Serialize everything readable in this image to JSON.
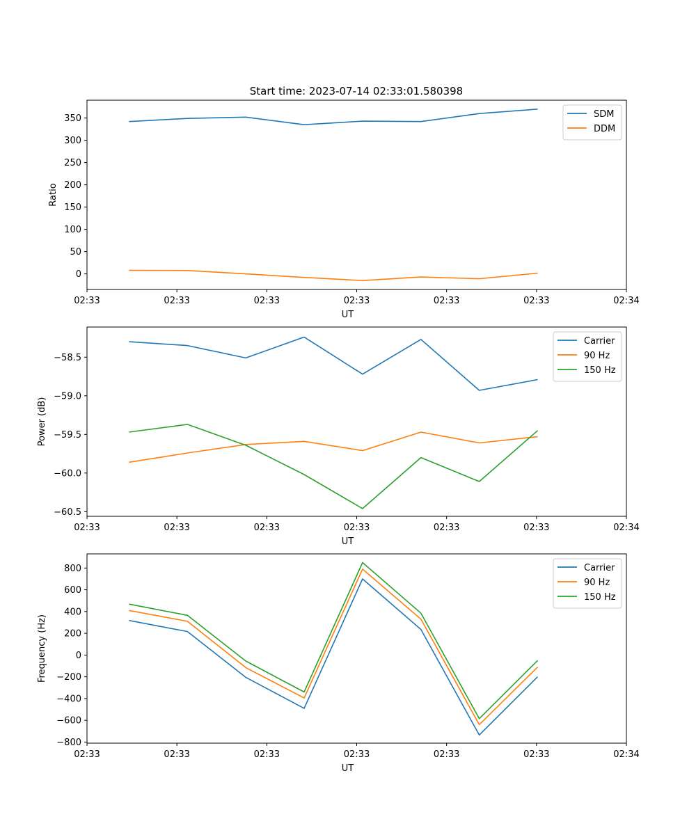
{
  "figure_title": "Start time: 2023-07-14 02:33:01.580398",
  "colors": {
    "blue": "#1f77b4",
    "orange": "#ff7f0e",
    "green": "#2ca02c"
  },
  "chart_data": [
    {
      "type": "line",
      "title": "Start time: 2023-07-14 02:33:01.580398",
      "xlabel": "UT",
      "ylabel": "Ratio",
      "x": [
        1,
        2,
        3,
        4,
        5,
        6,
        7,
        8
      ],
      "xlim": [
        0.28,
        9.52
      ],
      "x_ticks": [
        0.28,
        1.82,
        3.36,
        4.9,
        6.44,
        7.98,
        9.52
      ],
      "x_tick_labels": [
        "02:33",
        "02:33",
        "02:33",
        "02:33",
        "02:33",
        "02:33",
        "02:34"
      ],
      "ylim": [
        -35,
        390
      ],
      "y_ticks": [
        0,
        50,
        100,
        150,
        200,
        250,
        300,
        350
      ],
      "y_tick_labels": [
        "0",
        "50",
        "100",
        "150",
        "200",
        "250",
        "300",
        "350"
      ],
      "legend": "top-right",
      "series": [
        {
          "name": "SDM",
          "color": "#1f77b4",
          "values": [
            342,
            349,
            352,
            335,
            343,
            342,
            360,
            370
          ]
        },
        {
          "name": "DDM",
          "color": "#ff7f0e",
          "values": [
            8,
            7.5,
            0,
            -8,
            -15,
            -7,
            -11,
            1.5
          ]
        }
      ]
    },
    {
      "type": "line",
      "title": "",
      "xlabel": "UT",
      "ylabel": "Power (dB)",
      "x": [
        1,
        2,
        3,
        4,
        5,
        6,
        7,
        8
      ],
      "xlim": [
        0.28,
        9.52
      ],
      "x_ticks": [
        0.28,
        1.82,
        3.36,
        4.9,
        6.44,
        7.98,
        9.52
      ],
      "x_tick_labels": [
        "02:33",
        "02:33",
        "02:33",
        "02:33",
        "02:33",
        "02:33",
        "02:34"
      ],
      "ylim": [
        -60.56,
        -58.11
      ],
      "y_ticks": [
        -60.5,
        -60.0,
        -59.5,
        -59.0,
        -58.5
      ],
      "y_tick_labels": [
        "−60.5",
        "−60.0",
        "−59.5",
        "−59.0",
        "−58.5"
      ],
      "legend": "top-right",
      "series": [
        {
          "name": "Carrier",
          "color": "#1f77b4",
          "values": [
            -58.3,
            -58.35,
            -58.51,
            -58.24,
            -58.72,
            -58.27,
            -58.93,
            -58.79
          ]
        },
        {
          "name": "90 Hz",
          "color": "#ff7f0e",
          "values": [
            -59.86,
            -59.74,
            -59.63,
            -59.59,
            -59.71,
            -59.47,
            -59.61,
            -59.53
          ]
        },
        {
          "name": "150 Hz",
          "color": "#2ca02c",
          "values": [
            -59.47,
            -59.37,
            -59.64,
            -60.02,
            -60.46,
            -59.8,
            -60.11,
            -59.45
          ]
        }
      ]
    },
    {
      "type": "line",
      "title": "",
      "xlabel": "UT",
      "ylabel": "Frequency (Hz)",
      "x": [
        1,
        2,
        3,
        4,
        5,
        6,
        7,
        8
      ],
      "xlim": [
        0.28,
        9.52
      ],
      "x_ticks": [
        0.28,
        1.82,
        3.36,
        4.9,
        6.44,
        7.98,
        9.52
      ],
      "x_tick_labels": [
        "02:33",
        "02:33",
        "02:33",
        "02:33",
        "02:33",
        "02:33",
        "02:34"
      ],
      "ylim": [
        -810,
        930
      ],
      "y_ticks": [
        -800,
        -600,
        -400,
        -200,
        0,
        200,
        400,
        600,
        800
      ],
      "y_tick_labels": [
        "−800",
        "−600",
        "−400",
        "−200",
        "0",
        "200",
        "400",
        "600",
        "800"
      ],
      "legend": "top-right",
      "series": [
        {
          "name": "Carrier",
          "color": "#1f77b4",
          "values": [
            318,
            216,
            -205,
            -490,
            700,
            235,
            -735,
            -200
          ]
        },
        {
          "name": "90 Hz",
          "color": "#ff7f0e",
          "values": [
            410,
            310,
            -115,
            -395,
            790,
            330,
            -640,
            -110
          ]
        },
        {
          "name": "150 Hz",
          "color": "#2ca02c",
          "values": [
            468,
            365,
            -55,
            -340,
            850,
            385,
            -585,
            -50
          ]
        }
      ]
    }
  ]
}
